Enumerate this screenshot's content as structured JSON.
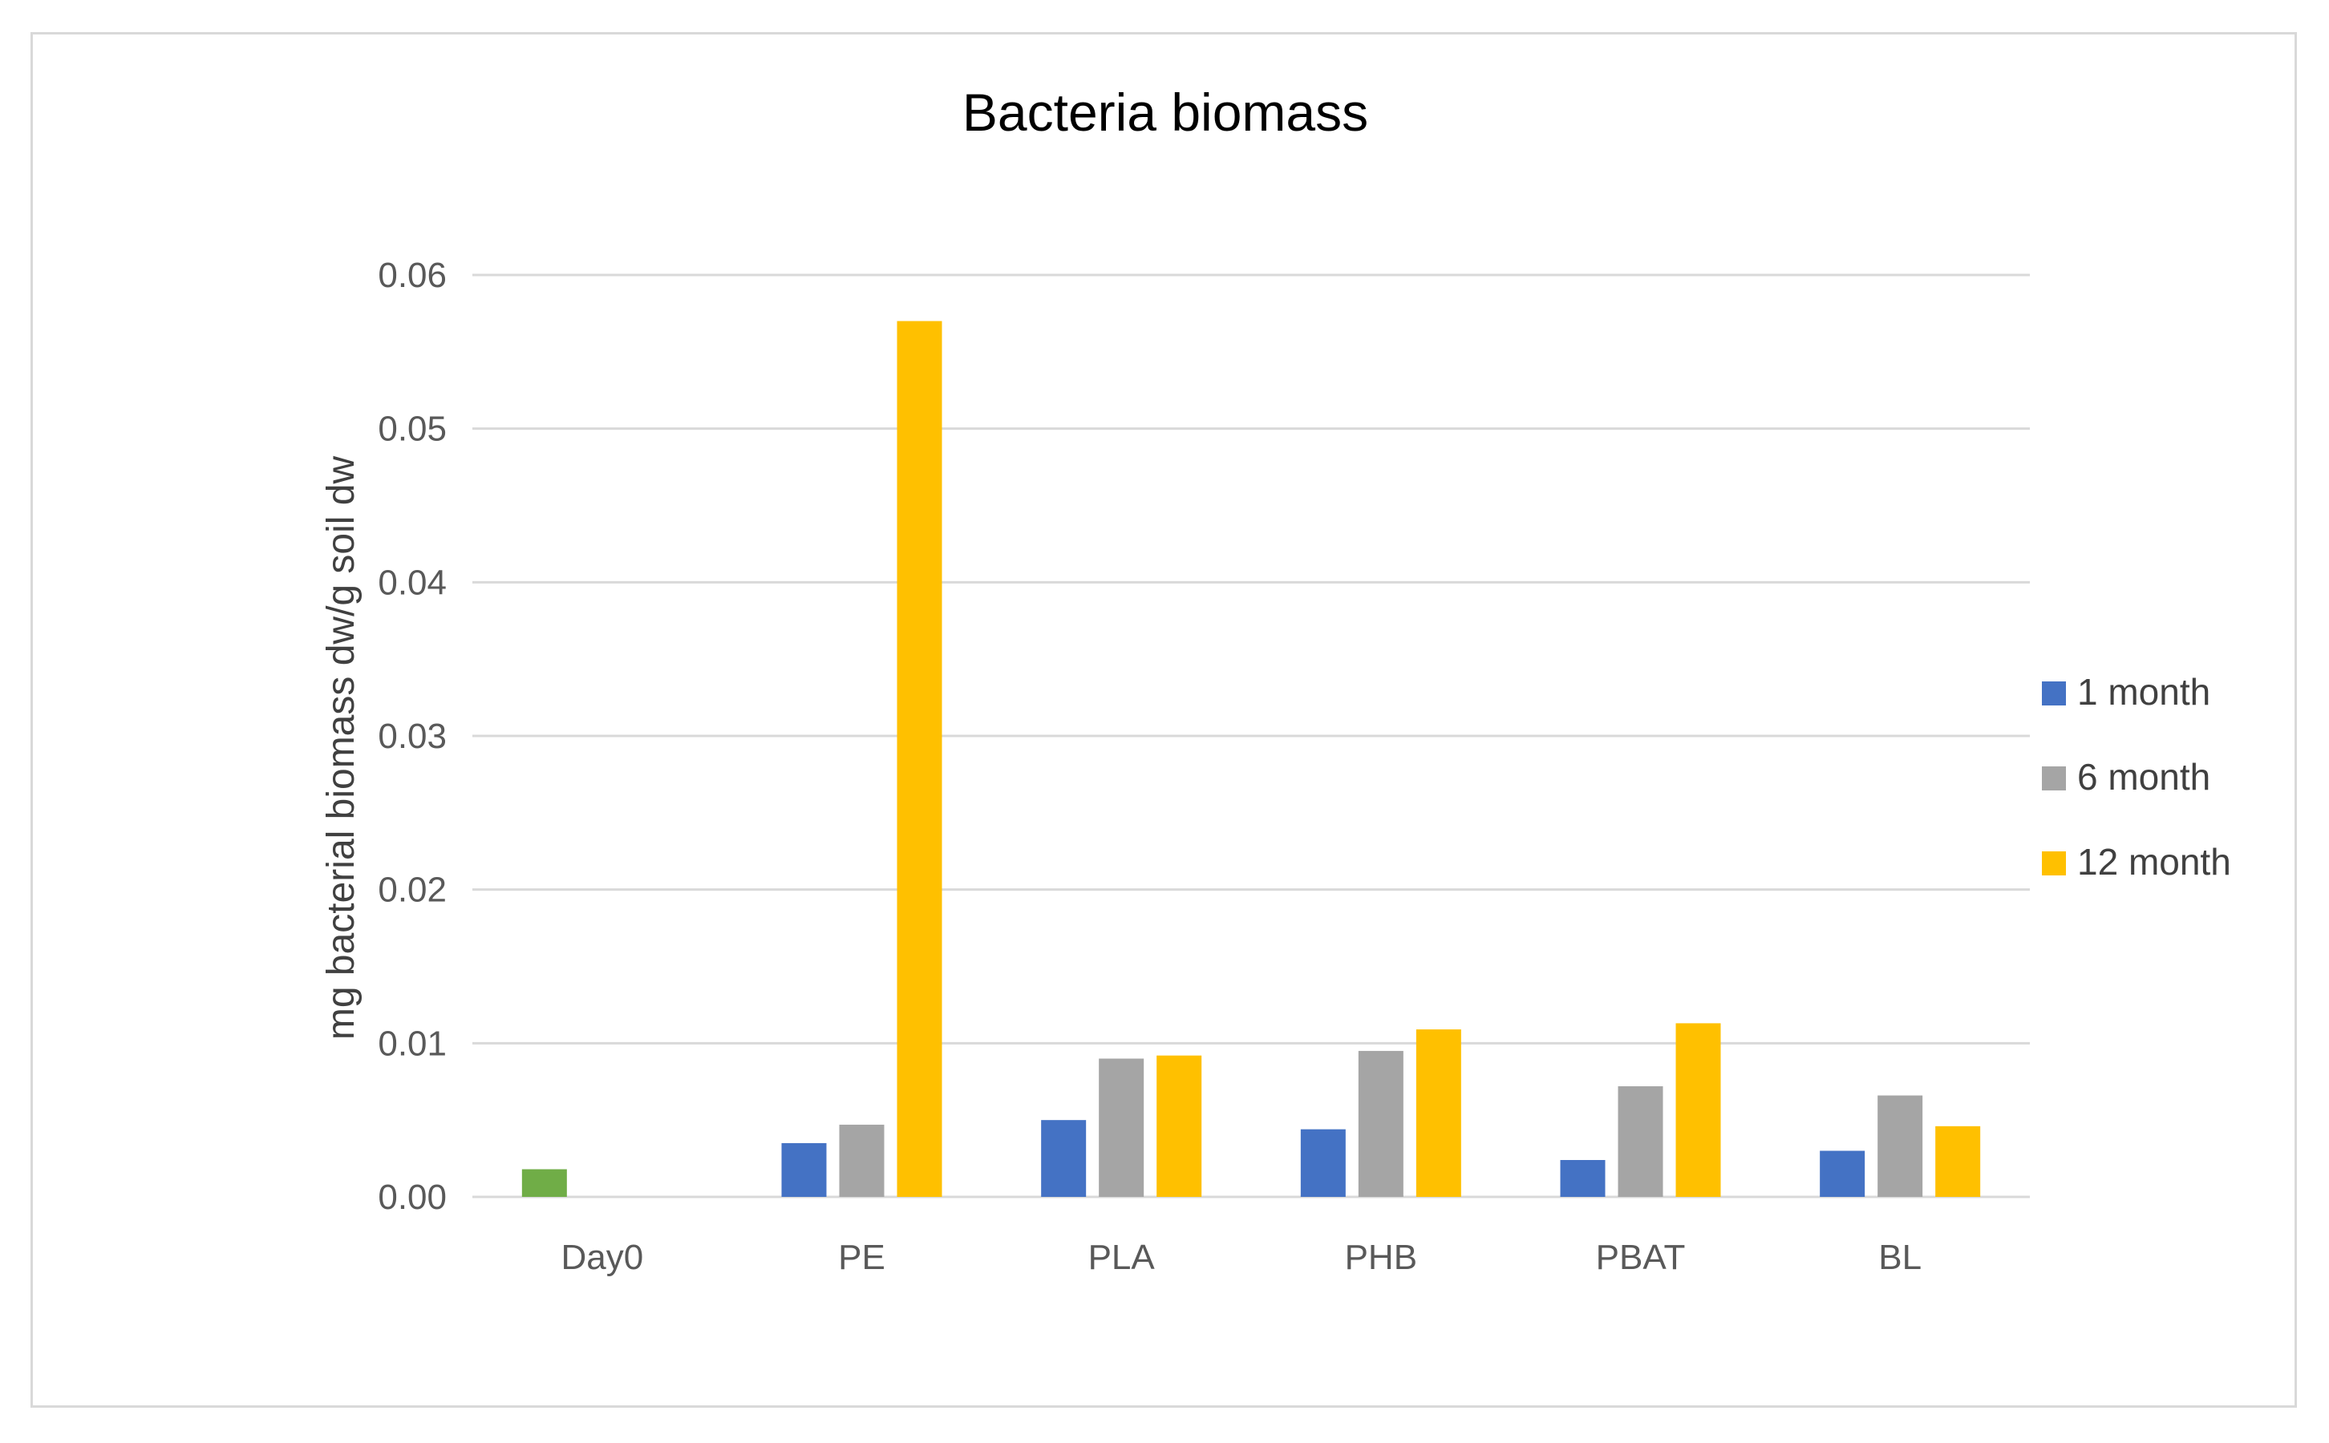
{
  "chart_data": {
    "type": "bar",
    "title": "Bacteria biomass",
    "xlabel": "",
    "ylabel": "mg bacterial biomass dw/g soil dw",
    "ylim": [
      0,
      0.06
    ],
    "yticks": [
      "0.00",
      "0.01",
      "0.02",
      "0.03",
      "0.04",
      "0.05",
      "0.06"
    ],
    "grid": true,
    "legend_position": "right",
    "categories": [
      "Day0",
      "PE",
      "PLA",
      "PHB",
      "PBAT",
      "BL"
    ],
    "series": [
      {
        "name": "1 month",
        "color": "#4472c4",
        "values": [
          null,
          0.0035,
          0.005,
          0.0044,
          0.0024,
          0.003
        ]
      },
      {
        "name": "6 month",
        "color": "#a5a5a5",
        "values": [
          null,
          0.0047,
          0.009,
          0.0095,
          0.0072,
          0.0066
        ]
      },
      {
        "name": "12 month",
        "color": "#ffc000",
        "values": [
          null,
          0.057,
          0.0092,
          0.0109,
          0.0113,
          0.0046
        ]
      }
    ],
    "extra_bars": [
      {
        "category": "Day0",
        "value": 0.0018,
        "color": "#70ad47"
      }
    ]
  }
}
